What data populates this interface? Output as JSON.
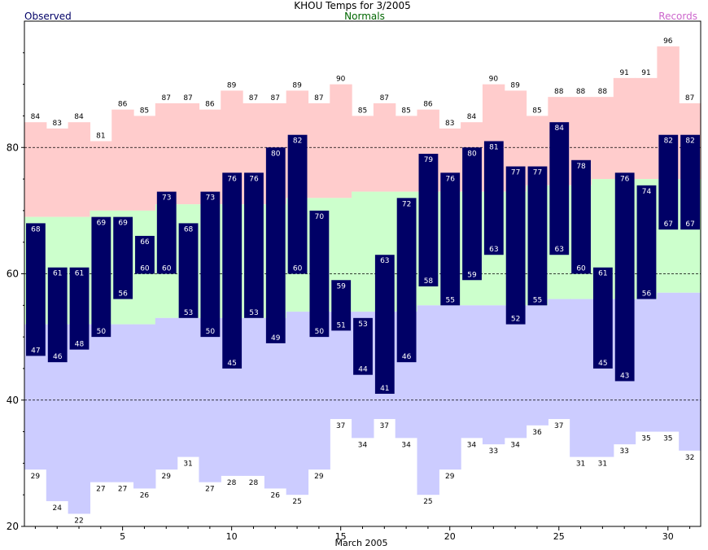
{
  "title": "KHOU Temps for 3/2005",
  "legend": {
    "observed": "Observed",
    "normals": "Normals",
    "records": "Records"
  },
  "colors": {
    "observed_bar": "#000066",
    "observed_label": "#000066",
    "normals_label": "#006600",
    "records_label": "#cc66cc",
    "record_high_band": "#ffcccc",
    "normal_band": "#ccffcc",
    "record_low_band": "#ccccff",
    "bar_label": "#ffffff",
    "grid": "#000000"
  },
  "chart_data": {
    "type": "bar",
    "x_label": "March 2005",
    "x_ticks": [
      5,
      10,
      15,
      20,
      25,
      30
    ],
    "y_ticks": [
      20,
      40,
      60,
      80
    ],
    "ylim": [
      20,
      100
    ],
    "xlim": [
      0.5,
      31.5
    ],
    "grid_lines_y": [
      40,
      60,
      80
    ],
    "days": [
      1,
      2,
      3,
      4,
      5,
      6,
      7,
      8,
      9,
      10,
      11,
      12,
      13,
      14,
      15,
      16,
      17,
      18,
      19,
      20,
      21,
      22,
      23,
      24,
      25,
      26,
      27,
      28,
      29,
      30,
      31
    ],
    "observed_high": [
      68,
      61,
      61,
      69,
      69,
      66,
      73,
      68,
      73,
      76,
      76,
      80,
      82,
      70,
      59,
      53,
      63,
      72,
      79,
      76,
      80,
      81,
      77,
      77,
      84,
      78,
      61,
      76,
      74,
      82,
      82
    ],
    "observed_low": [
      47,
      46,
      48,
      50,
      56,
      60,
      60,
      53,
      50,
      45,
      53,
      49,
      60,
      50,
      51,
      44,
      41,
      46,
      58,
      55,
      59,
      63,
      52,
      55,
      63,
      60,
      45,
      43,
      56,
      67,
      67
    ],
    "record_high": [
      84,
      83,
      84,
      81,
      86,
      85,
      87,
      87,
      86,
      89,
      87,
      87,
      89,
      87,
      90,
      85,
      87,
      85,
      86,
      83,
      84,
      90,
      89,
      85,
      88,
      88,
      88,
      91,
      91,
      96,
      87
    ],
    "record_low": [
      29,
      24,
      22,
      27,
      27,
      26,
      29,
      31,
      27,
      28,
      28,
      26,
      25,
      29,
      37,
      34,
      37,
      34,
      25,
      29,
      34,
      33,
      34,
      36,
      37,
      31,
      31,
      33,
      35,
      35,
      32
    ],
    "normal_high": [
      69,
      69,
      69,
      70,
      70,
      70,
      71,
      71,
      71,
      71,
      71,
      71,
      72,
      72,
      72,
      73,
      73,
      73,
      73,
      73,
      73,
      73,
      73,
      74,
      74,
      74,
      75,
      75,
      75,
      75,
      75
    ],
    "normal_low": [
      52,
      52,
      52,
      52,
      52,
      52,
      53,
      53,
      53,
      53,
      53,
      53,
      54,
      54,
      54,
      54,
      54,
      54,
      55,
      55,
      55,
      55,
      55,
      55,
      56,
      56,
      56,
      56,
      56,
      57,
      57
    ]
  }
}
